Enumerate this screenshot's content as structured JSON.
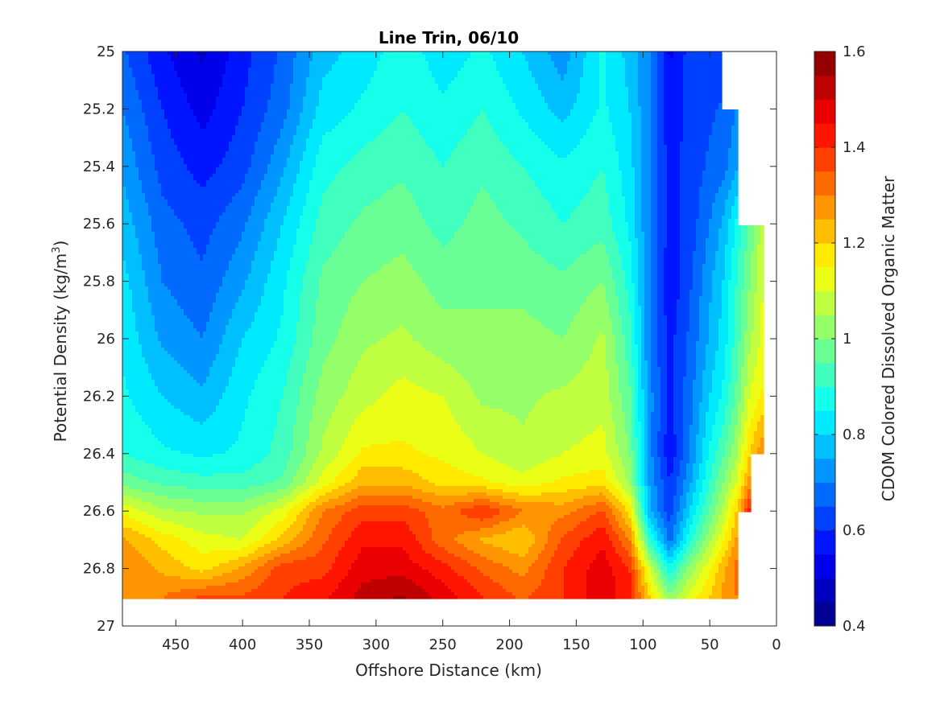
{
  "chart_data": {
    "type": "heatmap",
    "subtype": "filled-contour",
    "title": "Line Trin, 06/10",
    "xlabel": "Offshore Distance (km)",
    "ylabel_main": "Potential Density (kg/m",
    "ylabel_sup": "3",
    "ylabel_close": ")",
    "colorbar_label": "CDOM Colored Dissolved Organic Matter",
    "x_reversed": true,
    "xlim": [
      490,
      0
    ],
    "ylim": [
      25,
      27
    ],
    "y_reversed": true,
    "x_ticks": [
      450,
      400,
      350,
      300,
      250,
      200,
      150,
      100,
      50,
      0
    ],
    "x_tick_labels": [
      "450",
      "400",
      "350",
      "300",
      "250",
      "200",
      "150",
      "100",
      "50",
      "0"
    ],
    "y_ticks": [
      25,
      25.2,
      25.4,
      25.6,
      25.8,
      26,
      26.2,
      26.4,
      26.6,
      26.8,
      27
    ],
    "y_tick_labels": [
      "25",
      "25.2",
      "25.4",
      "25.6",
      "25.8",
      "26",
      "26.2",
      "26.4",
      "26.6",
      "26.8",
      "27"
    ],
    "clim": [
      0.4,
      1.6
    ],
    "colorbar_ticks": [
      0.4,
      0.6,
      0.8,
      1,
      1.2,
      1.4,
      1.6
    ],
    "colorbar_tick_labels": [
      "0.4",
      "0.6",
      "0.8",
      "1",
      "1.2",
      "1.4",
      "1.6"
    ],
    "contour_levels": 24,
    "colormap": "jet",
    "grid": false,
    "data_bottom_density": 26.9,
    "x": [
      490,
      460,
      430,
      400,
      370,
      340,
      310,
      280,
      250,
      220,
      190,
      160,
      130,
      110,
      95,
      80,
      65,
      50,
      40,
      30,
      20,
      10
    ],
    "y": [
      25.0,
      25.2,
      25.4,
      25.6,
      25.8,
      26.0,
      26.2,
      26.4,
      26.5,
      26.6,
      26.7,
      26.8,
      26.9
    ],
    "z": [
      [
        0.66,
        0.56,
        0.49,
        0.58,
        0.66,
        0.78,
        0.82,
        0.88,
        0.82,
        0.86,
        0.8,
        0.72,
        0.86,
        0.78,
        0.7,
        0.54,
        0.62,
        0.62,
        0.6,
        null,
        null,
        null
      ],
      [
        0.7,
        0.6,
        0.53,
        0.6,
        0.68,
        0.82,
        0.86,
        0.9,
        0.86,
        0.9,
        0.84,
        0.78,
        0.86,
        0.8,
        0.7,
        0.56,
        0.62,
        0.64,
        0.66,
        0.7,
        null,
        null
      ],
      [
        0.74,
        0.63,
        0.58,
        0.63,
        0.74,
        0.88,
        0.92,
        0.94,
        0.9,
        0.94,
        0.9,
        0.86,
        0.9,
        0.82,
        0.7,
        0.58,
        0.62,
        0.66,
        0.68,
        0.74,
        null,
        null
      ],
      [
        0.78,
        0.67,
        0.63,
        0.69,
        0.8,
        0.92,
        0.96,
        0.98,
        0.93,
        0.97,
        0.94,
        0.9,
        0.93,
        0.84,
        0.7,
        0.58,
        0.62,
        0.7,
        0.76,
        0.86,
        0.96,
        1.08
      ],
      [
        0.82,
        0.7,
        0.66,
        0.74,
        0.84,
        0.96,
        1.0,
        1.02,
        0.98,
        1.0,
        0.98,
        0.96,
        1.0,
        0.88,
        0.7,
        0.56,
        0.64,
        0.74,
        0.8,
        0.9,
        1.0,
        1.1
      ],
      [
        0.84,
        0.74,
        0.7,
        0.8,
        0.86,
        0.98,
        1.04,
        1.06,
        1.02,
        1.0,
        1.02,
        1.0,
        1.06,
        0.92,
        0.7,
        0.58,
        0.66,
        0.76,
        0.82,
        0.92,
        1.04,
        1.12
      ],
      [
        0.86,
        0.8,
        0.76,
        0.84,
        0.9,
        1.02,
        1.08,
        1.12,
        1.1,
        1.04,
        1.04,
        1.06,
        1.08,
        0.96,
        0.72,
        0.58,
        0.68,
        0.8,
        0.86,
        0.96,
        1.1,
        1.16
      ],
      [
        0.9,
        0.86,
        0.84,
        0.86,
        0.92,
        1.06,
        1.16,
        1.16,
        1.14,
        1.1,
        1.06,
        1.1,
        1.12,
        1.0,
        0.72,
        0.56,
        0.7,
        0.86,
        0.94,
        1.04,
        1.2,
        1.3
      ],
      [
        0.98,
        0.94,
        0.92,
        0.92,
        0.96,
        1.12,
        1.24,
        1.24,
        1.18,
        1.16,
        1.12,
        1.16,
        1.18,
        1.04,
        0.74,
        0.6,
        0.74,
        0.9,
        1.0,
        1.1,
        1.28,
        null
      ],
      [
        1.14,
        1.06,
        1.04,
        1.04,
        1.12,
        1.3,
        1.38,
        1.38,
        1.32,
        1.4,
        1.3,
        1.28,
        1.36,
        1.18,
        0.76,
        0.62,
        0.8,
        0.96,
        1.06,
        1.2,
        1.42,
        null
      ],
      [
        1.26,
        1.18,
        1.12,
        1.1,
        1.22,
        1.34,
        1.44,
        1.44,
        1.32,
        1.24,
        1.2,
        1.36,
        1.44,
        1.3,
        0.9,
        0.68,
        0.88,
        1.04,
        1.14,
        1.26,
        null,
        null
      ],
      [
        1.3,
        1.24,
        1.18,
        1.26,
        1.38,
        1.38,
        1.48,
        1.48,
        1.42,
        1.34,
        1.28,
        1.4,
        1.48,
        1.4,
        1.1,
        0.86,
        1.02,
        1.14,
        1.24,
        1.32,
        null,
        null
      ],
      [
        1.28,
        1.3,
        1.36,
        1.36,
        1.4,
        1.44,
        1.52,
        1.56,
        1.48,
        1.4,
        1.34,
        1.4,
        1.48,
        1.42,
        1.2,
        1.02,
        1.12,
        1.2,
        1.26,
        1.3,
        null,
        null
      ]
    ]
  }
}
